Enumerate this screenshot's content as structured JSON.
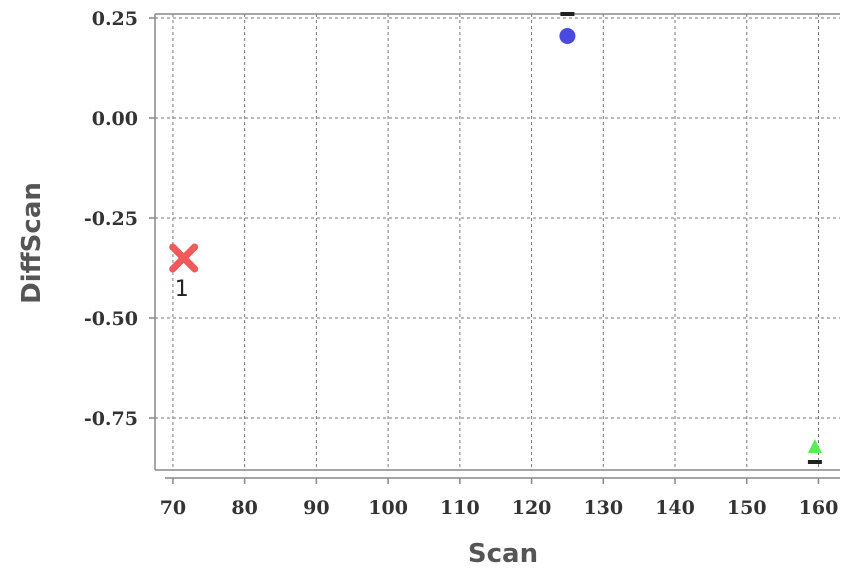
{
  "chart_data": {
    "type": "scatter",
    "title": "",
    "xlabel": "Scan",
    "ylabel": "DiffScan",
    "xlim": [
      67.5,
      163
    ],
    "ylim": [
      -0.88,
      0.26
    ],
    "x_ticks": [
      70,
      80,
      90,
      100,
      110,
      120,
      130,
      140,
      150,
      160
    ],
    "x_tick_labels": [
      "70",
      "80",
      "90",
      "100",
      "110",
      "120",
      "130",
      "140",
      "150",
      "160"
    ],
    "y_ticks": [
      0.25,
      0.0,
      -0.25,
      -0.5,
      -0.75
    ],
    "y_tick_labels": [
      "0.25",
      "0.00",
      "-0.25",
      "-0.50",
      "-0.75"
    ],
    "grid": true,
    "legend": "none",
    "series": [
      {
        "marker": "cross",
        "color": "#f05a5a",
        "points": [
          {
            "x": 71.5,
            "y": -0.35,
            "label": "1"
          }
        ]
      },
      {
        "marker": "circle",
        "color": "#4a4ae0",
        "points": [
          {
            "x": 125,
            "y": 0.205
          }
        ]
      },
      {
        "marker": "triangle",
        "color": "#55ee55",
        "points": [
          {
            "x": 159.5,
            "y": -0.825
          }
        ]
      },
      {
        "marker": "dash",
        "color": "#222222",
        "points": [
          {
            "x": 159.5,
            "y": -0.86
          },
          {
            "x": 125,
            "y": 0.26
          }
        ]
      }
    ]
  }
}
